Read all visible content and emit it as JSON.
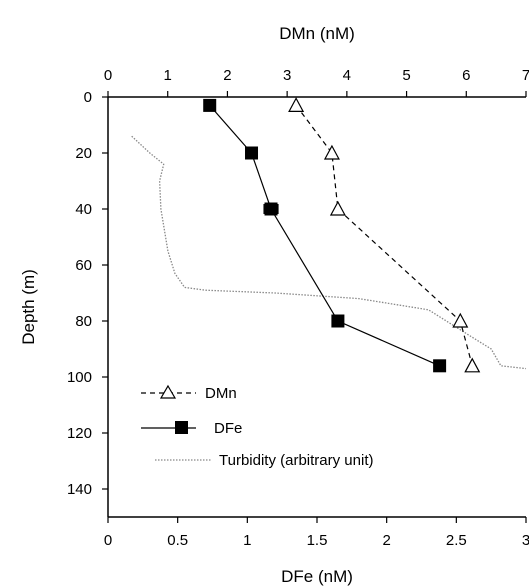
{
  "chart_data": {
    "type": "line",
    "x_axis_bottom": {
      "label": "DFe (nM)",
      "ticks": [
        "0",
        "0.5",
        "1",
        "1.5",
        "2",
        "2.5",
        "3"
      ],
      "range": [
        0,
        3
      ]
    },
    "x_axis_top": {
      "label": "DMn (nM)",
      "ticks": [
        "0",
        "1",
        "2",
        "3",
        "4",
        "5",
        "6",
        "7"
      ],
      "range": [
        0,
        7
      ]
    },
    "y_axis": {
      "label": "Depth (m)",
      "ticks": [
        "0",
        "20",
        "40",
        "60",
        "80",
        "100",
        "120",
        "140"
      ],
      "range": [
        0,
        150
      ],
      "inverted": true
    },
    "series": [
      {
        "name": "DMn",
        "axis": "top",
        "marker": "open-triangle",
        "line": "dashed",
        "points": [
          {
            "x": 3.15,
            "y": 3
          },
          {
            "x": 3.75,
            "y": 20
          },
          {
            "x": 3.85,
            "y": 40
          },
          {
            "x": 5.9,
            "y": 80
          },
          {
            "x": 6.1,
            "y": 96
          }
        ]
      },
      {
        "name": "DFe",
        "axis": "bottom",
        "marker": "filled-square",
        "line": "solid",
        "points": [
          {
            "x": 0.73,
            "y": 3
          },
          {
            "x": 1.03,
            "y": 20
          },
          {
            "x": 1.17,
            "y": 40,
            "xerr": 0.05
          },
          {
            "x": 1.65,
            "y": 80
          },
          {
            "x": 2.38,
            "y": 96
          }
        ]
      },
      {
        "name": "Turbidity (arbitrary unit)",
        "axis": "bottom",
        "marker": "none",
        "line": "dotted",
        "points": [
          {
            "x": 0.17,
            "y": 14
          },
          {
            "x": 0.3,
            "y": 20
          },
          {
            "x": 0.4,
            "y": 24
          },
          {
            "x": 0.37,
            "y": 30
          },
          {
            "x": 0.38,
            "y": 40
          },
          {
            "x": 0.4,
            "y": 46
          },
          {
            "x": 0.43,
            "y": 55
          },
          {
            "x": 0.48,
            "y": 63
          },
          {
            "x": 0.55,
            "y": 68
          },
          {
            "x": 0.7,
            "y": 69
          },
          {
            "x": 1.2,
            "y": 70
          },
          {
            "x": 1.8,
            "y": 72
          },
          {
            "x": 2.3,
            "y": 76
          },
          {
            "x": 2.62,
            "y": 86
          },
          {
            "x": 2.75,
            "y": 90
          },
          {
            "x": 2.82,
            "y": 96
          },
          {
            "x": 3.0,
            "y": 97
          }
        ]
      }
    ],
    "legend_position": "bottom-left"
  }
}
